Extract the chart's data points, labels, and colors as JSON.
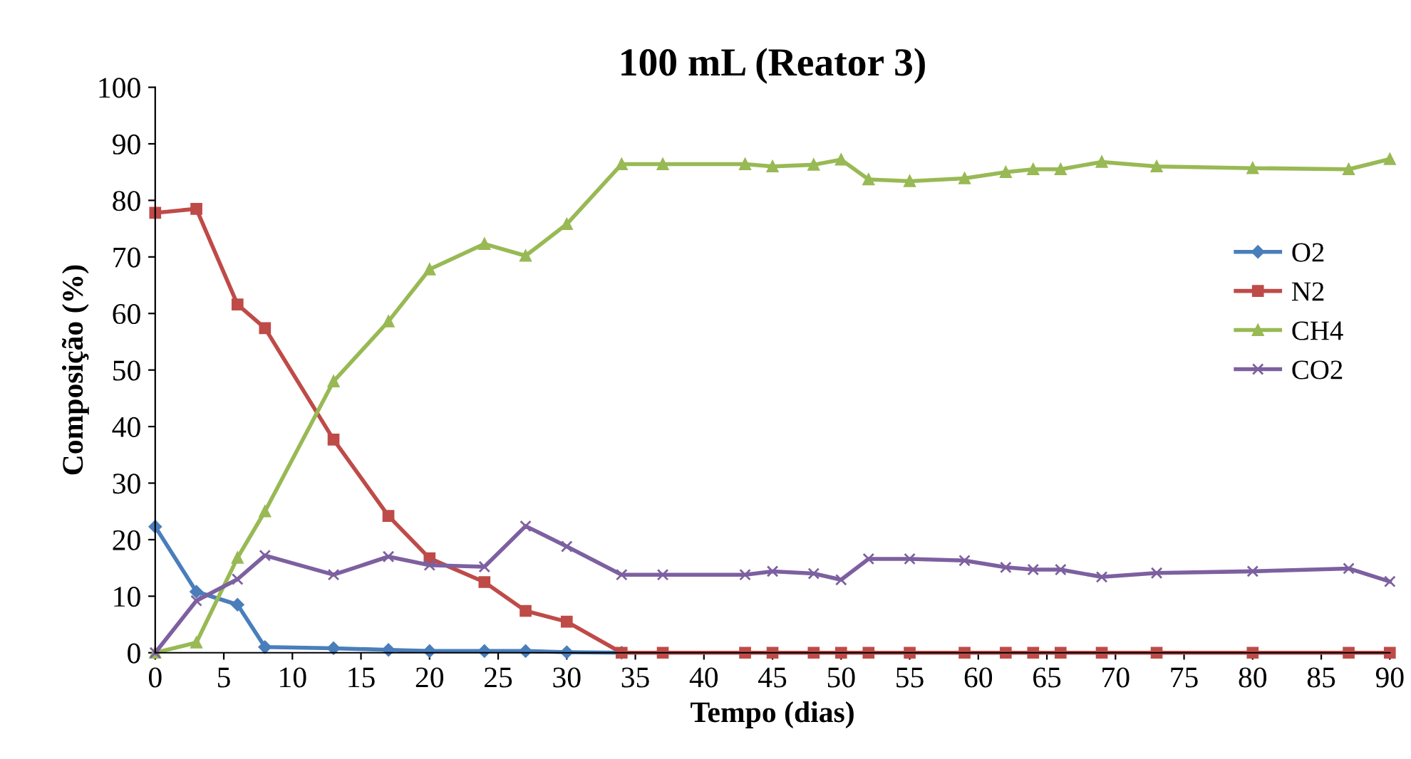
{
  "chart_data": {
    "type": "line",
    "title": "100 mL (Reator 3)",
    "xlabel": "Tempo (dias)",
    "ylabel": "Composição (%)",
    "x": [
      0,
      3,
      6,
      8,
      13,
      17,
      20,
      24,
      27,
      30,
      34,
      37,
      43,
      45,
      48,
      50,
      52,
      55,
      59,
      62,
      64,
      66,
      69,
      73,
      80,
      87,
      90
    ],
    "series": [
      {
        "name": "O2",
        "color": "#4a7ebb",
        "marker": "diamond",
        "values": [
          22.3,
          10.8,
          8.5,
          1,
          0.8,
          0.5,
          0.3,
          0.3,
          0.3,
          0.1,
          0,
          null,
          null,
          null,
          null,
          null,
          null,
          null,
          null,
          null,
          null,
          null,
          null,
          null,
          null,
          null,
          null
        ]
      },
      {
        "name": "N2",
        "color": "#be4b48",
        "marker": "square",
        "values": [
          77.8,
          78.5,
          61.6,
          57.4,
          37.7,
          24.2,
          16.7,
          12.5,
          7.4,
          5.5,
          0,
          0,
          0,
          0,
          0,
          0,
          0,
          0,
          0,
          0,
          0,
          0,
          0,
          0,
          0,
          0,
          0
        ]
      },
      {
        "name": "CH4",
        "color": "#98b954",
        "marker": "triangle",
        "values": [
          0,
          1.8,
          16.8,
          25,
          48,
          58.6,
          67.8,
          72.3,
          70.2,
          75.8,
          86.4,
          86.4,
          86.4,
          86,
          86.3,
          87.2,
          83.7,
          83.4,
          83.9,
          85,
          85.5,
          85.5,
          86.8,
          86,
          85.7,
          85.5,
          87.3
        ]
      },
      {
        "name": "CO2",
        "color": "#7d60a0",
        "marker": "cross",
        "values": [
          0,
          9.2,
          13,
          17.2,
          13.8,
          17,
          15.5,
          15.2,
          22.4,
          18.8,
          13.8,
          13.8,
          13.8,
          14.4,
          14,
          12.9,
          16.6,
          16.6,
          16.3,
          15.1,
          14.7,
          14.7,
          13.4,
          14.1,
          14.4,
          14.9,
          12.6
        ]
      }
    ],
    "xlim": [
      0,
      90
    ],
    "xticks": [
      0,
      5,
      10,
      15,
      20,
      25,
      30,
      35,
      40,
      45,
      50,
      55,
      60,
      65,
      70,
      75,
      80,
      85,
      90
    ],
    "ylim": [
      0,
      100
    ],
    "yticks": [
      0,
      10,
      20,
      30,
      40,
      50,
      60,
      70,
      80,
      90,
      100
    ],
    "grid": false,
    "legend": "right",
    "line_style": "solid"
  }
}
